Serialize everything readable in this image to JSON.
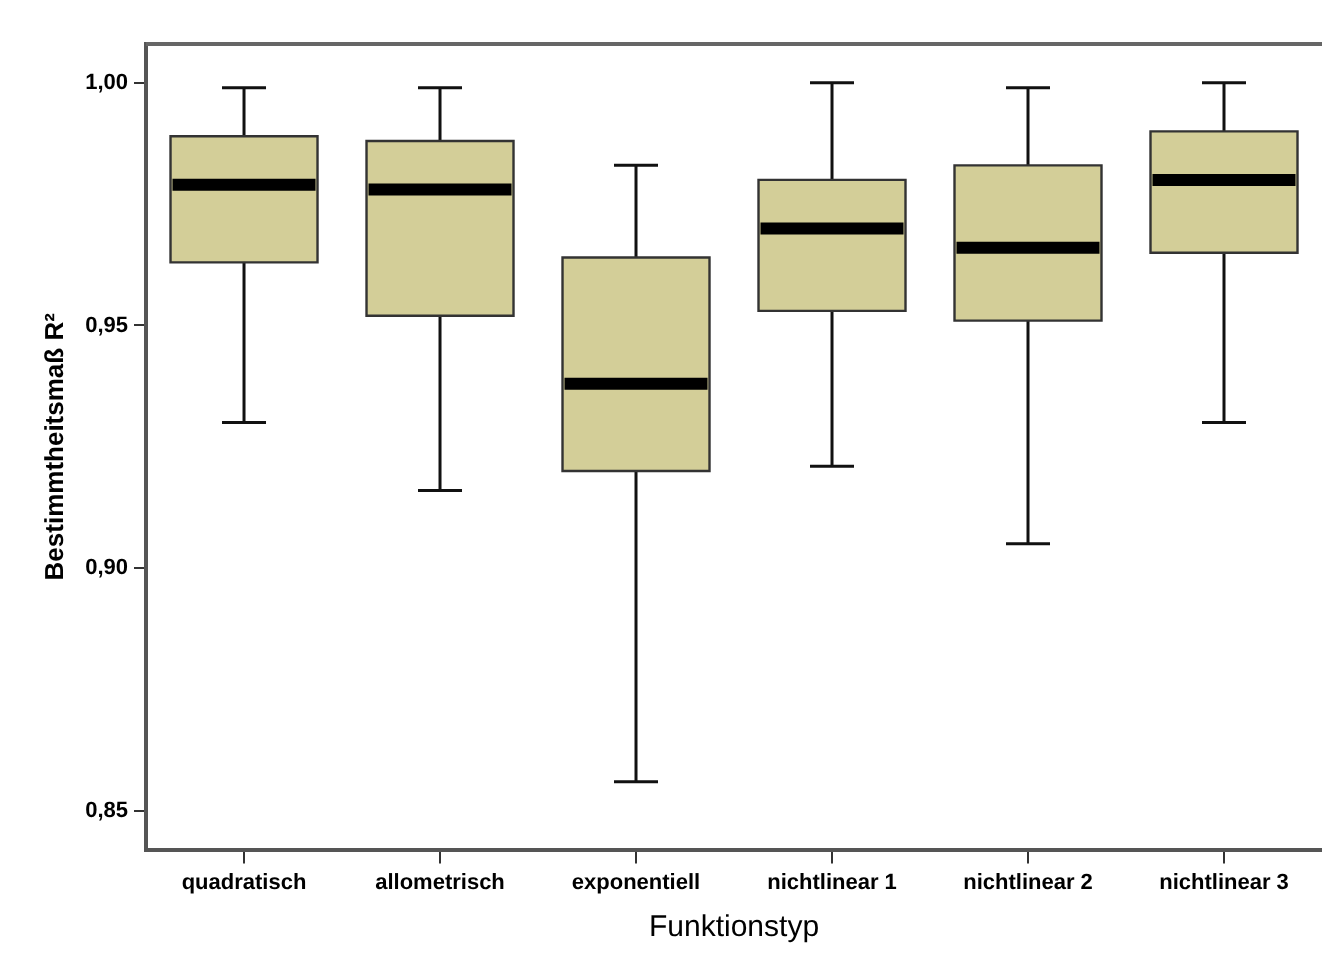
{
  "chart_data": {
    "type": "box",
    "xlabel": "Funktionstyp",
    "ylabel": "Bestimmtheitsmaß R²",
    "categories": [
      "quadratisch",
      "allometrisch",
      "exponentiell",
      "nichtlinear 1",
      "nichtlinear 2",
      "nichtlinear 3"
    ],
    "color": "#d3ce98",
    "boxes": [
      {
        "low": 0.93,
        "q1": 0.963,
        "median": 0.979,
        "q3": 0.989,
        "high": 0.999
      },
      {
        "low": 0.916,
        "q1": 0.952,
        "median": 0.978,
        "q3": 0.988,
        "high": 0.999
      },
      {
        "low": 0.856,
        "q1": 0.92,
        "median": 0.938,
        "q3": 0.964,
        "high": 0.983
      },
      {
        "low": 0.921,
        "q1": 0.953,
        "median": 0.97,
        "q3": 0.98,
        "high": 1.0
      },
      {
        "low": 0.905,
        "q1": 0.951,
        "median": 0.966,
        "q3": 0.983,
        "high": 0.999
      },
      {
        "low": 0.93,
        "q1": 0.965,
        "median": 0.98,
        "q3": 0.99,
        "high": 1.0
      }
    ],
    "ylim": [
      0.842,
      1.008
    ],
    "yticks": [
      {
        "value": 0.85,
        "label": "0,85"
      },
      {
        "value": 0.9,
        "label": "0,90"
      },
      {
        "value": 0.95,
        "label": "0,95"
      },
      {
        "value": 1.0,
        "label": "1,00"
      }
    ]
  }
}
